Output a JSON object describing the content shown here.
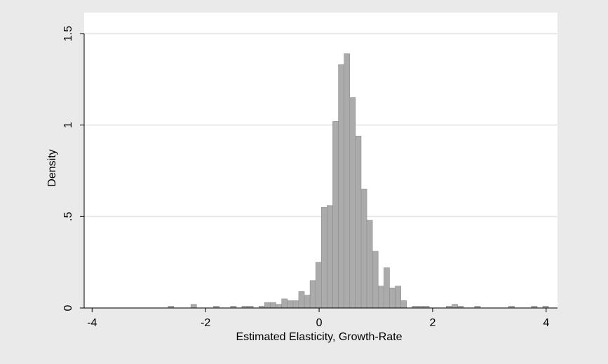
{
  "chart_data": {
    "type": "histogram",
    "x_label": "Estimated Elasticity, Growth-Rate",
    "y_label": "Density",
    "bins": [
      -2.66,
      -2.56,
      -2.46,
      -2.36,
      -2.26,
      -2.16,
      -2.06,
      -1.96,
      -1.86,
      -1.76,
      -1.66,
      -1.56,
      -1.46,
      -1.36,
      -1.26,
      -1.16,
      -1.06,
      -0.96,
      -0.86,
      -0.76,
      -0.66,
      -0.56,
      -0.46,
      -0.36,
      -0.26,
      -0.16,
      -0.06,
      0.04,
      0.14,
      0.24,
      0.34,
      0.44,
      0.54,
      0.64,
      0.74,
      0.84,
      0.94,
      1.04,
      1.14,
      1.24,
      1.34,
      1.44,
      1.54,
      1.64,
      1.74,
      1.84,
      1.94,
      2.04,
      2.14,
      2.24,
      2.34,
      2.44,
      2.54,
      2.64,
      2.74,
      2.84,
      2.94,
      3.04,
      3.14,
      3.24,
      3.34,
      3.44,
      3.54,
      3.64,
      3.74,
      3.84,
      3.94,
      4.04
    ],
    "values": [
      0.01,
      0,
      0,
      0,
      0.02,
      0,
      0,
      0,
      0.01,
      0,
      0,
      0.01,
      0,
      0.01,
      0.01,
      0,
      0.01,
      0.03,
      0.03,
      0.02,
      0.05,
      0.04,
      0.04,
      0.09,
      0.07,
      0.15,
      0.25,
      0.55,
      0.56,
      1.02,
      1.33,
      1.39,
      1.15,
      0.94,
      0.65,
      0.48,
      0.31,
      0.12,
      0.22,
      0.11,
      0.12,
      0.04,
      0,
      0.01,
      0.01,
      0.01,
      0,
      0,
      0,
      0.01,
      0.02,
      0.01,
      0,
      0,
      0.01,
      0,
      0,
      0,
      0,
      0,
      0.01,
      0,
      0,
      0,
      0.01,
      0,
      0.01
    ],
    "color": "#ababab",
    "xlim": [
      -4.14,
      4.2
    ],
    "xticks": [
      -4,
      -2,
      0,
      2,
      4
    ],
    "ylim": [
      0,
      1.5
    ],
    "yticks": [
      0,
      {
        "value": 0.5,
        "label": ".5"
      },
      1,
      1.5
    ],
    "grid": true
  }
}
